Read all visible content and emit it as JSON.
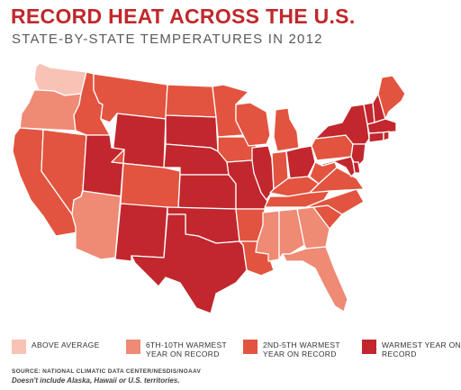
{
  "header": {
    "title": "RECORD HEAT ACROSS THE U.S.",
    "subtitle": "STATE-BY-STATE TEMPERATURES IN 2012"
  },
  "colors": {
    "above_average": "#f8c2b5",
    "warmest_6_10": "#ef8a75",
    "warmest_2_5": "#e2543f",
    "warmest_year": "#c1272d",
    "border": "#ffffff"
  },
  "legend": [
    {
      "label": "ABOVE AVERAGE",
      "category": "above_average"
    },
    {
      "label": "6TH-10TH WARMEST YEAR ON RECORD",
      "category": "warmest_6_10"
    },
    {
      "label": "2ND-5TH WARMEST YEAR ON RECORD",
      "category": "warmest_2_5"
    },
    {
      "label": "WARMEST YEAR ON RECORD",
      "category": "warmest_year"
    }
  ],
  "states": {
    "WA": "above_average",
    "OR": "warmest_6_10",
    "AZ": "warmest_6_10",
    "MS": "warmest_6_10",
    "AL": "warmest_6_10",
    "GA": "warmest_6_10",
    "FL": "warmest_6_10",
    "CA": "warmest_2_5",
    "NV": "warmest_2_5",
    "ID": "warmest_2_5",
    "MT": "warmest_2_5",
    "ND": "warmest_2_5",
    "MN": "warmest_2_5",
    "WI": "warmest_2_5",
    "MI": "warmest_2_5",
    "IA": "warmest_2_5",
    "IN": "warmest_2_5",
    "CO": "warmest_2_5",
    "AR": "warmest_2_5",
    "LA": "warmest_2_5",
    "TN": "warmest_2_5",
    "KY": "warmest_2_5",
    "WV": "warmest_2_5",
    "VA": "warmest_2_5",
    "NC": "warmest_2_5",
    "SC": "warmest_2_5",
    "PA": "warmest_2_5",
    "ME": "warmest_2_5",
    "WY": "warmest_year",
    "UT": "warmest_year",
    "NM": "warmest_year",
    "SD": "warmest_year",
    "NE": "warmest_year",
    "KS": "warmest_year",
    "OK": "warmest_year",
    "TX": "warmest_year",
    "MO": "warmest_year",
    "IL": "warmest_year",
    "OH": "warmest_year",
    "NY": "warmest_year",
    "VT": "warmest_year",
    "NH": "warmest_year",
    "MA": "warmest_year",
    "CT": "warmest_year",
    "RI": "warmest_year",
    "NJ": "warmest_year",
    "DE": "warmest_year",
    "MD": "warmest_year"
  },
  "footer": {
    "source": "SOURCE: NATIONAL CLIMATIC DATA CENTER/NESDIS/NOAAV",
    "note": "Doesn't include Alaska, Hawaii or U.S. territories."
  }
}
